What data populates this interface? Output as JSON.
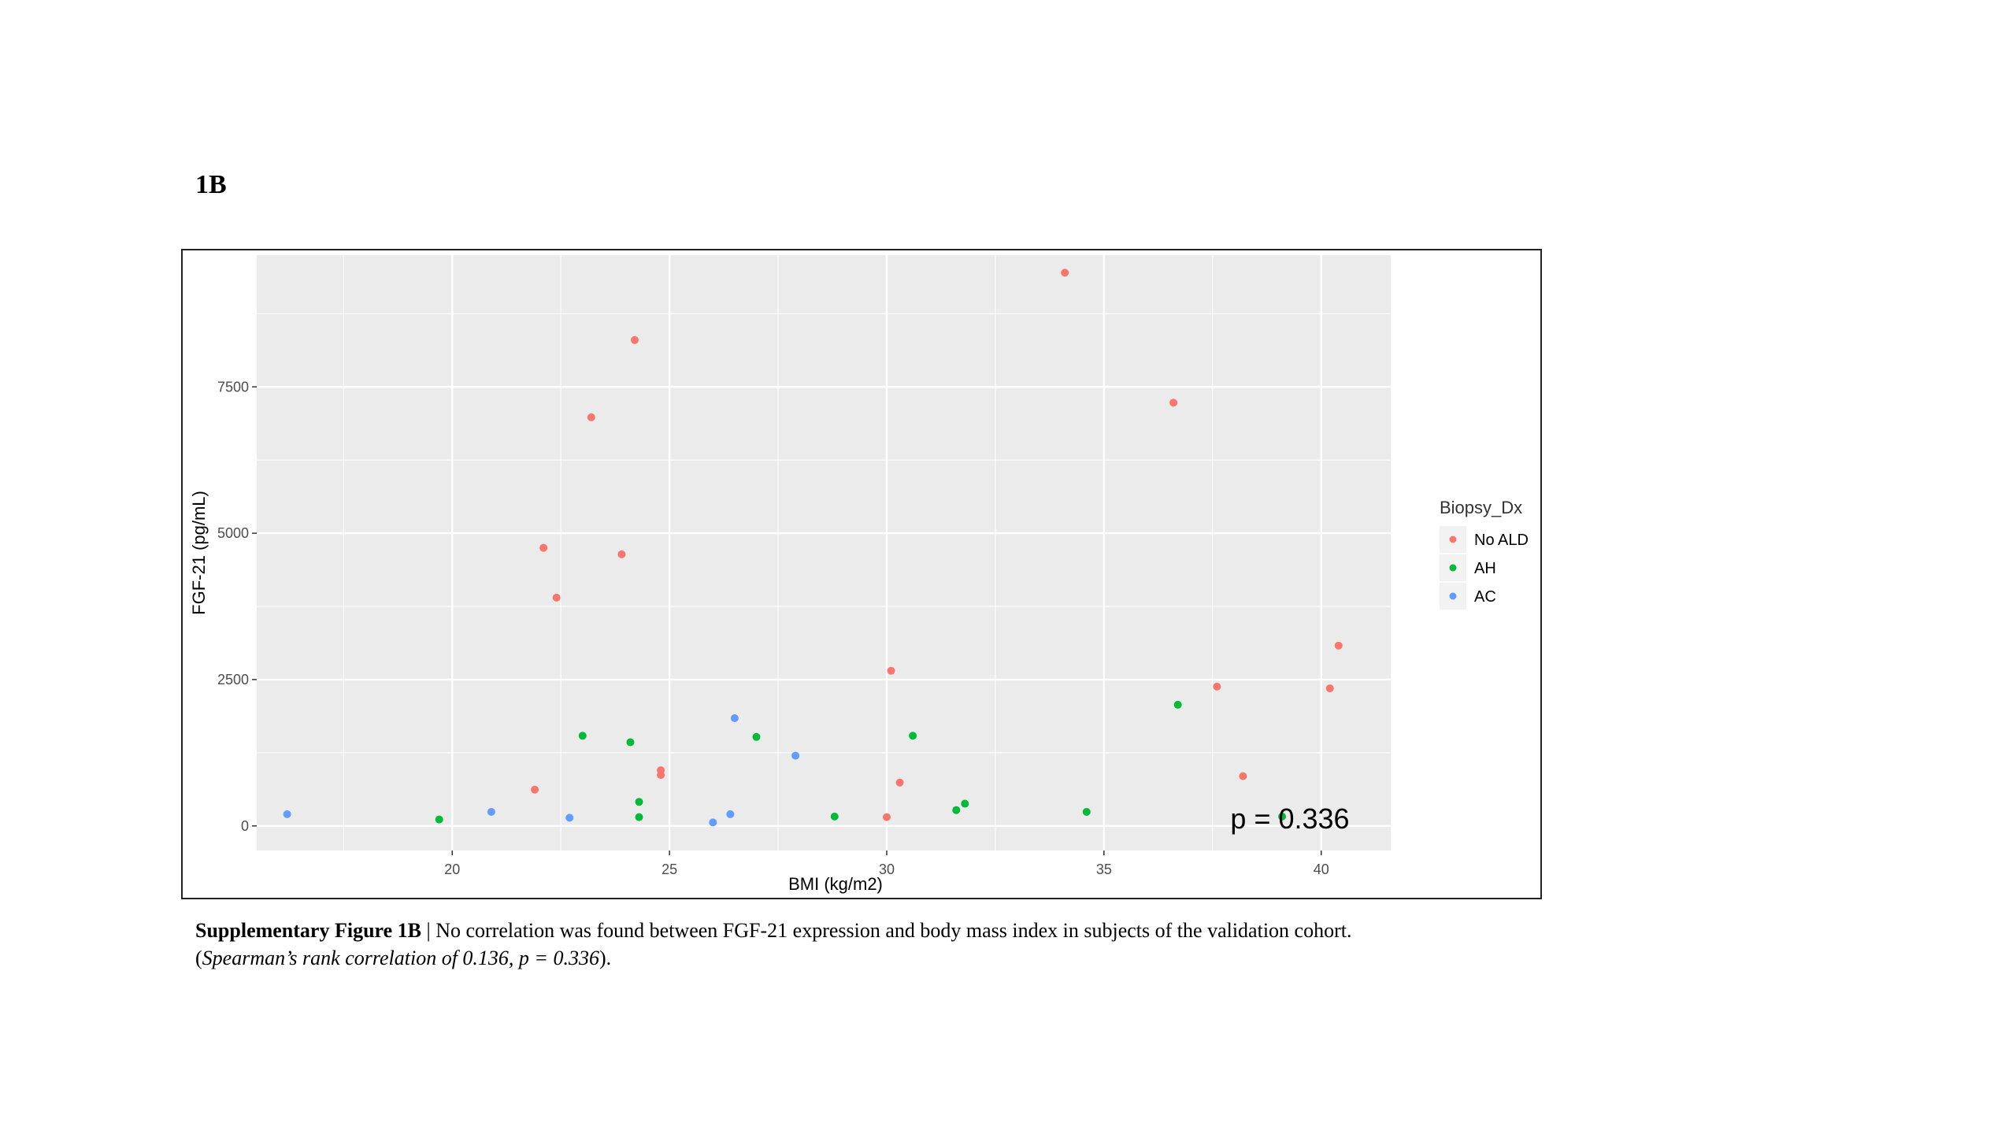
{
  "panel_label": "1B",
  "caption": {
    "lead": "Supplementary Figure 1B",
    "separator": " | ",
    "body": "No correlation was found between FGF-21 expression and body mass index in subjects of the validation cohort.",
    "paren_open": "(",
    "italic": "Spearman’s rank correlation of 0.136, p = 0.336",
    "paren_close": ")."
  },
  "chart_data": {
    "type": "scatter",
    "xlabel": "BMI (kg/m2)",
    "ylabel": "FGF-21 (pg/mL)",
    "xlim": [
      15.5,
      41.6
    ],
    "ylim": [
      -420,
      9750
    ],
    "x_ticks": [
      20,
      25,
      30,
      35,
      40
    ],
    "y_ticks": [
      0,
      2500,
      5000,
      7500
    ],
    "y_tick_labels": [
      "0",
      "2500",
      "5000",
      "7500"
    ],
    "x_tick_labels": [
      "20",
      "25",
      "30",
      "35",
      "40"
    ],
    "grid": true,
    "legend_position": "right",
    "legend_title": "Biopsy_Dx",
    "annotation": "p = 0.336",
    "colors": {
      "No ALD": "#f8766d",
      "AH": "#00ba38",
      "AC": "#619cff",
      "panel": "#ebebeb",
      "grid": "#ffffff"
    },
    "series": [
      {
        "name": "No ALD",
        "points": [
          [
            22.1,
            4750
          ],
          [
            22.4,
            3900
          ],
          [
            21.9,
            620
          ],
          [
            23.2,
            6980
          ],
          [
            23.9,
            4640
          ],
          [
            24.2,
            8300
          ],
          [
            24.8,
            950
          ],
          [
            24.8,
            870
          ],
          [
            30.1,
            2650
          ],
          [
            30.3,
            740
          ],
          [
            30.0,
            150
          ],
          [
            34.1,
            9450
          ],
          [
            36.6,
            7230
          ],
          [
            37.6,
            2380
          ],
          [
            38.2,
            850
          ],
          [
            40.2,
            2350
          ],
          [
            40.4,
            3080
          ]
        ]
      },
      {
        "name": "AH",
        "points": [
          [
            19.7,
            110
          ],
          [
            23.0,
            1540
          ],
          [
            24.1,
            1430
          ],
          [
            24.3,
            410
          ],
          [
            24.3,
            150
          ],
          [
            27.0,
            1520
          ],
          [
            28.8,
            160
          ],
          [
            30.6,
            1540
          ],
          [
            31.6,
            270
          ],
          [
            31.8,
            380
          ],
          [
            34.6,
            240
          ],
          [
            36.7,
            2070
          ],
          [
            39.1,
            160
          ]
        ]
      },
      {
        "name": "AC",
        "points": [
          [
            16.2,
            200
          ],
          [
            20.9,
            240
          ],
          [
            22.7,
            140
          ],
          [
            26.0,
            60
          ],
          [
            26.4,
            200
          ],
          [
            26.5,
            1840
          ],
          [
            27.9,
            1200
          ]
        ]
      }
    ]
  }
}
